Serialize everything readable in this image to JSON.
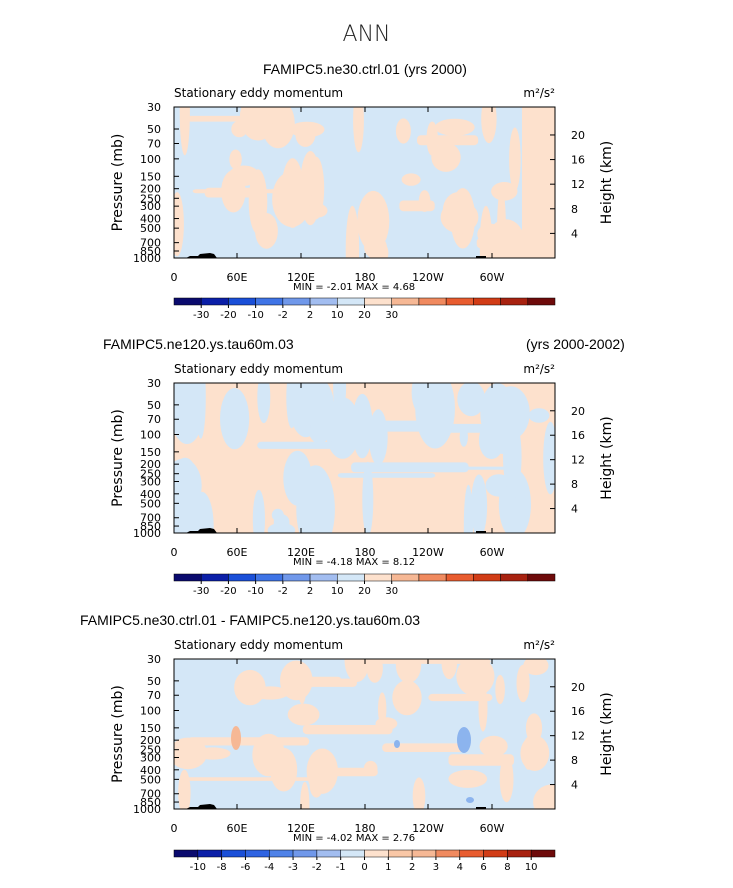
{
  "main_title": "ANN",
  "colors": {
    "blue_light": "#d4e7f7",
    "peach_light": "#fde1cd",
    "blue_mid": "#8cb4ee",
    "peach_mid": "#f6b895",
    "terrain": "#000000"
  },
  "panels": [
    {
      "title_left": "FAMIPC5.ne30.ctrl.01 (yrs 2000)",
      "title_right": "",
      "subtitle": "Stationary eddy momentum",
      "units": "m²/s²",
      "stats": "MIN =   -2.01   MAX =    4.68",
      "colorbar_labels": [
        "-30",
        "-20",
        "-10",
        "-2",
        "2",
        "10",
        "20",
        "30"
      ]
    },
    {
      "title_left": "FAMIPC5.ne120.ys.tau60m.03",
      "title_right": "(yrs 2000-2002)",
      "subtitle": "Stationary eddy momentum",
      "units": "m²/s²",
      "stats": "MIN =   -4.18   MAX =    8.12",
      "colorbar_labels": [
        "-30",
        "-20",
        "-10",
        "-2",
        "2",
        "10",
        "20",
        "30"
      ]
    },
    {
      "title_left": "FAMIPC5.ne30.ctrl.01 - FAMIPC5.ne120.ys.tau60m.03",
      "title_right": "",
      "subtitle": "Stationary eddy momentum",
      "units": "m²/s²",
      "stats": "MIN =   -4.02   MAX =    2.76",
      "colorbar_labels": [
        "-10",
        "-8",
        "-6",
        "-4",
        "-3",
        "-2",
        "-1",
        "0",
        "1",
        "2",
        "3",
        "4",
        "6",
        "8",
        "10"
      ]
    }
  ],
  "chart_data": {
    "type": "heatmap",
    "title": "ANN",
    "x_axis": {
      "ticks": [
        "0",
        "60E",
        "120E",
        "180",
        "120W",
        "60W"
      ]
    },
    "y_axis_left": {
      "label": "Pressure  (mb)",
      "scale": "log",
      "range": [
        1000,
        30
      ],
      "ticks": [
        "30",
        "50",
        "70",
        "100",
        "150",
        "200",
        "250",
        "300",
        "400",
        "500",
        "700",
        "850",
        "1000"
      ]
    },
    "y_axis_right": {
      "label": "Height  (km)",
      "ticks": [
        "4",
        "8",
        "12",
        "16",
        "20"
      ]
    },
    "colorbar_abs": {
      "colors": [
        "#0a0a6e",
        "#0b1fa8",
        "#1a4fd8",
        "#3f74e6",
        "#7098ea",
        "#a2bdf0",
        "#d4e7f7",
        "#fde1cd",
        "#f6b895",
        "#f08a5f",
        "#e85c2f",
        "#d13c16",
        "#a82210",
        "#6e0a0a"
      ],
      "labels": [
        "-30",
        "-20",
        "-10",
        "-2",
        "2",
        "10",
        "20",
        "30"
      ]
    },
    "colorbar_diff": {
      "colors": [
        "#0a0a6e",
        "#0b1fa8",
        "#1a4fd8",
        "#2e63e2",
        "#4f82e8",
        "#7098ea",
        "#a2bdf0",
        "#d4e7f7",
        "#fde1cd",
        "#f9c7a6",
        "#f6b895",
        "#f08a5f",
        "#e85c2f",
        "#d13c16",
        "#a82210",
        "#6e0a0a"
      ],
      "labels": [
        "-10",
        "-8",
        "-6",
        "-4",
        "-3",
        "-2",
        "-1",
        "0",
        "1",
        "2",
        "3",
        "4",
        "6",
        "8",
        "10"
      ]
    },
    "panels": [
      {
        "name": "FAMIPC5.ne30.ctrl.01 (yrs 2000)",
        "min": -2.01,
        "max": 4.68
      },
      {
        "name": "FAMIPC5.ne120.ys.tau60m.03",
        "min": -4.18,
        "max": 8.12
      },
      {
        "name": "FAMIPC5.ne30.ctrl.01 - FAMIPC5.ne120.ys.tau60m.03",
        "min": -4.02,
        "max": 2.76
      }
    ]
  }
}
